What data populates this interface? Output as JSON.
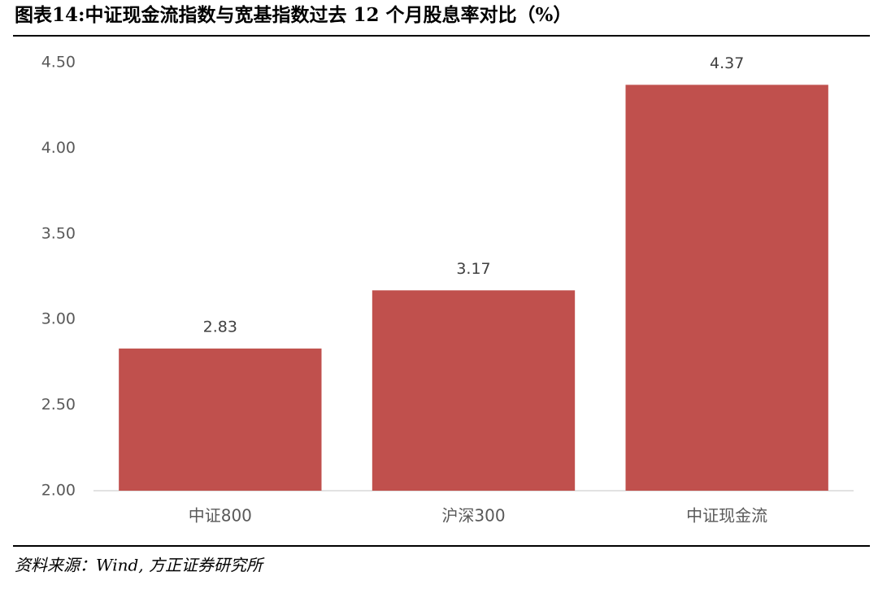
{
  "chart_data": {
    "type": "bar",
    "title": "图表14:中证现金流指数与宽基指数过去 12 个月股息率对比（%）",
    "source": "资料来源：Wind, 方正证券研究所",
    "categories": [
      "中证800",
      "沪深300",
      "中证现金流"
    ],
    "values": [
      2.83,
      3.17,
      4.37
    ],
    "color": "#c0504d",
    "ylim": [
      2,
      4.5
    ],
    "yticks": [
      {
        "value": 2,
        "label": "2.00"
      },
      {
        "value": 2.5,
        "label": "2.50"
      },
      {
        "value": 3,
        "label": "3.00"
      },
      {
        "value": 3.5,
        "label": "3.50"
      },
      {
        "value": 4,
        "label": "4.00"
      },
      {
        "value": 4.5,
        "label": "4.50"
      }
    ],
    "grid": false
  }
}
